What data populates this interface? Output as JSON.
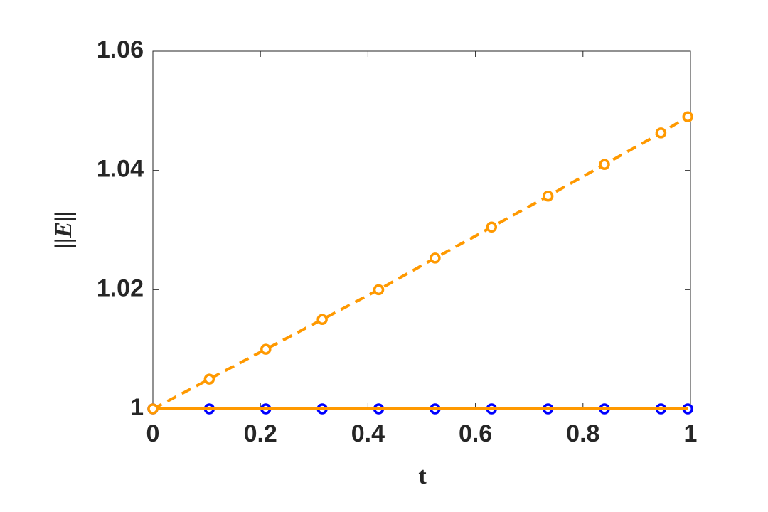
{
  "chart_data": {
    "type": "line",
    "x_label": "t",
    "y_label": "||E||",
    "x": [
      0,
      0.105,
      0.21,
      0.315,
      0.42,
      0.525,
      0.63,
      0.735,
      0.84,
      0.945,
      0.995
    ],
    "series": [
      {
        "color": "#0000ff",
        "line": "none",
        "marker": "circle",
        "values": [
          1,
          1,
          1,
          1,
          1,
          1,
          1,
          1,
          1,
          1,
          1
        ]
      },
      {
        "color": "#ff9900",
        "line": "solid",
        "marker": "none",
        "values": [
          1,
          1,
          1,
          1,
          1,
          1,
          1,
          1,
          1,
          1,
          1
        ]
      },
      {
        "color": "#ff9900",
        "line": "dashed",
        "marker": "circle",
        "values": [
          1,
          1.005,
          1.01,
          1.015,
          1.02,
          1.0253,
          1.0305,
          1.0357,
          1.041,
          1.0463,
          1.049
        ]
      }
    ],
    "xlim": [
      0,
      1
    ],
    "xticks": [
      0,
      0.2,
      0.4,
      0.6,
      0.8,
      1
    ],
    "ylim": [
      1,
      1.06
    ],
    "yticks": [
      1,
      1.02,
      1.04,
      1.06
    ],
    "grid": false
  }
}
